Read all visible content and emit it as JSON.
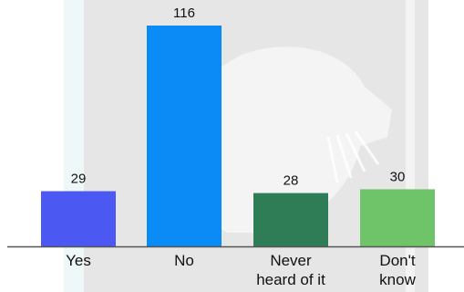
{
  "chart_data": {
    "type": "bar",
    "categories": [
      [
        "Yes"
      ],
      [
        "No"
      ],
      [
        "Never",
        "heard of it"
      ],
      [
        "Don't",
        "know"
      ]
    ],
    "values": [
      29,
      116,
      28,
      30
    ],
    "data_labels": [
      "29",
      "116",
      "28",
      "30"
    ],
    "bar_colors": [
      "#4c58f2",
      "#0a8bf5",
      "#2e7d56",
      "#6fc46a"
    ],
    "axis_color": "#555555",
    "background_watermark_color": "#e6e6e6",
    "accent_stripe_color": "#eef8f8",
    "ylim": [
      0,
      116
    ],
    "grid": false,
    "legend": "none",
    "title": "",
    "xlabel": "",
    "ylabel": ""
  }
}
